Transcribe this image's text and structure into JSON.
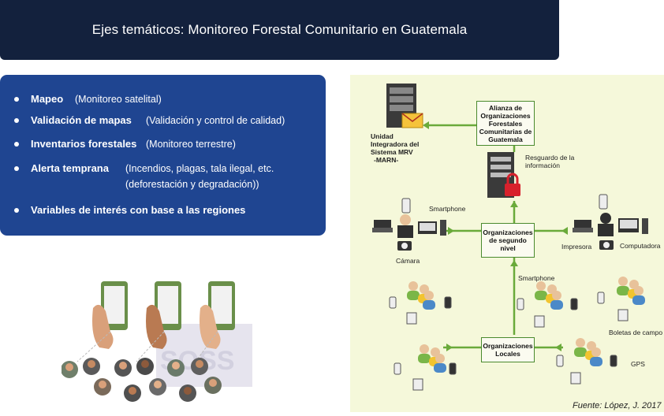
{
  "header": {
    "title": "Ejes temáticos: Monitoreo Forestal Comunitario en Guatemala"
  },
  "topics": [
    {
      "label": "Mapeo",
      "detail": "(Monitoreo satelital)"
    },
    {
      "label": "Validación de mapas",
      "detail": "(Validación y control de calidad)"
    },
    {
      "label": "Inventarios forestales",
      "detail": "(Monitoreo terrestre)"
    },
    {
      "label": "Alerta temprana",
      "detail": "(Incendios, plagas, tala ilegal, etc.",
      "detail2": "(deforestación y degradación))"
    },
    {
      "label": "Variables de interés con base a las regiones",
      "detail": ""
    }
  ],
  "diagram": {
    "unidad": [
      "Unidad",
      "Integradora del",
      "Sistema MRV",
      "-MARN-"
    ],
    "alianza": [
      "Alianza de",
      "Organizaciones",
      "Forestales",
      "Comunitarias de",
      "Guatemala"
    ],
    "resguardo": [
      "Resguardo de la",
      "información"
    ],
    "segundo_nivel": [
      "Organizaciones",
      "de segundo",
      "nivel"
    ],
    "locales": [
      "Organizaciones",
      "Locales"
    ],
    "smartphone_top": "Smartphone",
    "camara": "Cámara",
    "impresora": "Impresora",
    "computadora": "Computadora",
    "smartphone_mid": "Smartphone",
    "boletas": "Boletas de campo",
    "gps": "GPS",
    "source": "Fuente: López, J. 2017",
    "colors": {
      "arrow": "#6aaa3a",
      "line": "#4a8a2e",
      "background": "#f5f8da"
    }
  }
}
